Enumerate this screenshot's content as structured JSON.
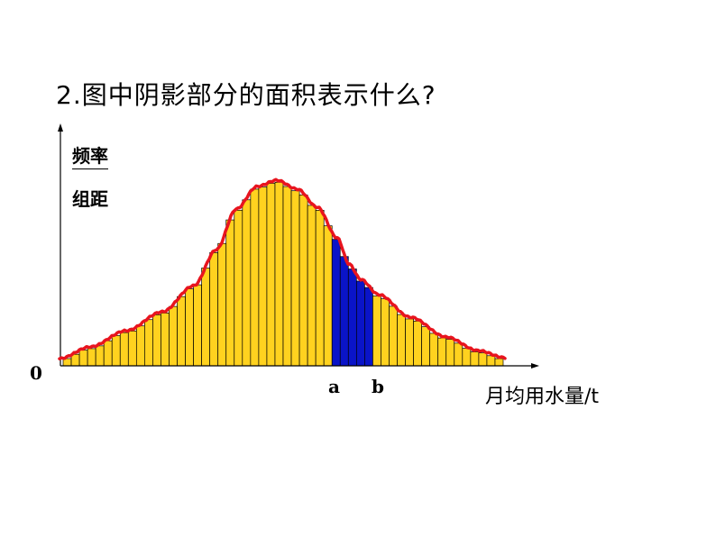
{
  "question": "2.图中阴影部分的面积表示什么?",
  "y_label": {
    "top": "频率",
    "bottom": "组距"
  },
  "x_label": "月均用水量/t",
  "origin": "0",
  "marks": {
    "a": "a",
    "b": "b"
  },
  "colors": {
    "bar_fill": "#FFD21F",
    "shaded_fill": "#0A14C8",
    "curve": "#E8141E",
    "axis": "#000000"
  },
  "legend": "none",
  "grid": false
}
